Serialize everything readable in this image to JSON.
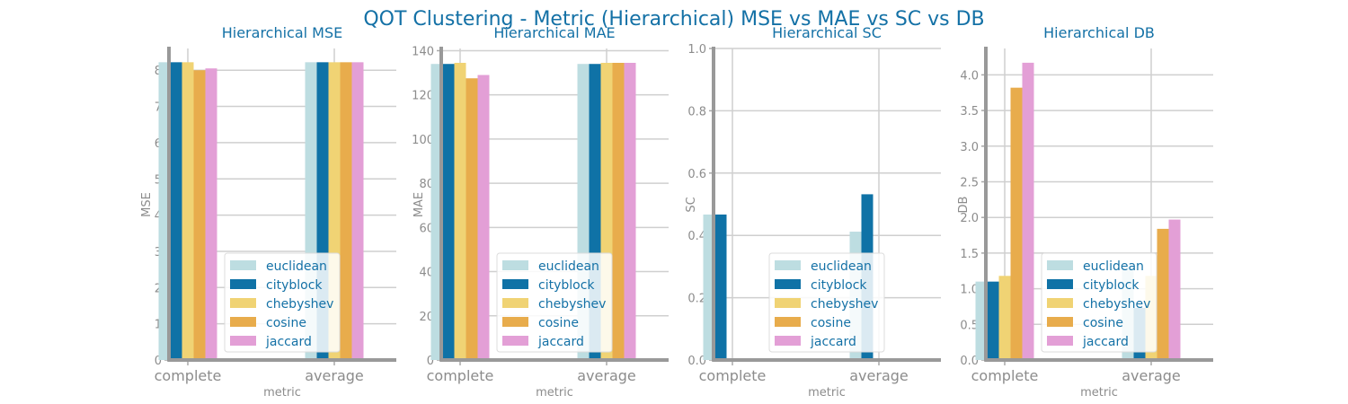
{
  "figure": {
    "title": "QOT Clustering - Metric (Hierarchical) MSE vs MAE vs SC vs DB"
  },
  "chart_data": [
    {
      "type": "bar",
      "title": "Hierarchical MSE",
      "xlabel": "metric",
      "ylabel": "MSE",
      "categories": [
        "complete",
        "average"
      ],
      "ylim": [
        0,
        8.6
      ],
      "yticks": [
        0,
        1,
        2,
        3,
        4,
        5,
        6,
        7,
        8
      ],
      "legend_position": "lower center",
      "series": [
        {
          "name": "euclidean",
          "color": "#bddde1",
          "values": [
            8.22,
            8.22
          ]
        },
        {
          "name": "cityblock",
          "color": "#0f72a6",
          "values": [
            8.22,
            8.22
          ]
        },
        {
          "name": "chebyshev",
          "color": "#f0d374",
          "values": [
            8.22,
            8.22
          ]
        },
        {
          "name": "cosine",
          "color": "#e8ac4c",
          "values": [
            8.0,
            8.22
          ]
        },
        {
          "name": "jaccard",
          "color": "#e39fd6",
          "values": [
            8.05,
            8.22
          ]
        }
      ]
    },
    {
      "type": "bar",
      "title": "Hierarchical MAE",
      "xlabel": "metric",
      "ylabel": "MAE",
      "categories": [
        "complete",
        "average"
      ],
      "ylim": [
        0,
        141
      ],
      "yticks": [
        0,
        20,
        40,
        60,
        80,
        100,
        120,
        140
      ],
      "legend_position": "lower center",
      "series": [
        {
          "name": "euclidean",
          "color": "#bddde1",
          "values": [
            134,
            134
          ]
        },
        {
          "name": "cityblock",
          "color": "#0f72a6",
          "values": [
            134,
            134
          ]
        },
        {
          "name": "chebyshev",
          "color": "#f0d374",
          "values": [
            134.5,
            134.5
          ]
        },
        {
          "name": "cosine",
          "color": "#e8ac4c",
          "values": [
            127.5,
            134.5
          ]
        },
        {
          "name": "jaccard",
          "color": "#e39fd6",
          "values": [
            129,
            134.5
          ]
        }
      ]
    },
    {
      "type": "bar",
      "title": "Hierarchical SC",
      "xlabel": "metric",
      "ylabel": "SC",
      "categories": [
        "complete",
        "average"
      ],
      "ylim": [
        0,
        1.0
      ],
      "yticks": [
        0.0,
        0.2,
        0.4,
        0.6,
        0.8,
        1.0
      ],
      "legend_position": "lower center",
      "series": [
        {
          "name": "euclidean",
          "color": "#bddde1",
          "values": [
            0.467,
            0.412
          ]
        },
        {
          "name": "cityblock",
          "color": "#0f72a6",
          "values": [
            0.467,
            0.532
          ]
        },
        {
          "name": "chebyshev",
          "color": "#f0d374",
          "values": [
            0,
            0
          ]
        },
        {
          "name": "cosine",
          "color": "#e8ac4c",
          "values": [
            0,
            0
          ]
        },
        {
          "name": "jaccard",
          "color": "#e39fd6",
          "values": [
            0,
            0
          ]
        }
      ]
    },
    {
      "type": "bar",
      "title": "Hierarchical DB",
      "xlabel": "metric",
      "ylabel": "DB",
      "categories": [
        "complete",
        "average"
      ],
      "ylim": [
        0,
        4.37
      ],
      "yticks": [
        0.0,
        0.5,
        1.0,
        1.5,
        2.0,
        2.5,
        3.0,
        3.5,
        4.0
      ],
      "legend_position": "lower center",
      "series": [
        {
          "name": "euclidean",
          "color": "#bddde1",
          "values": [
            1.1,
            1.3
          ]
        },
        {
          "name": "cityblock",
          "color": "#0f72a6",
          "values": [
            1.1,
            0.73
          ]
        },
        {
          "name": "chebyshev",
          "color": "#f0d374",
          "values": [
            1.18,
            1.18
          ]
        },
        {
          "name": "cosine",
          "color": "#e8ac4c",
          "values": [
            3.82,
            1.84
          ]
        },
        {
          "name": "jaccard",
          "color": "#e39fd6",
          "values": [
            4.17,
            1.97
          ]
        }
      ]
    }
  ]
}
